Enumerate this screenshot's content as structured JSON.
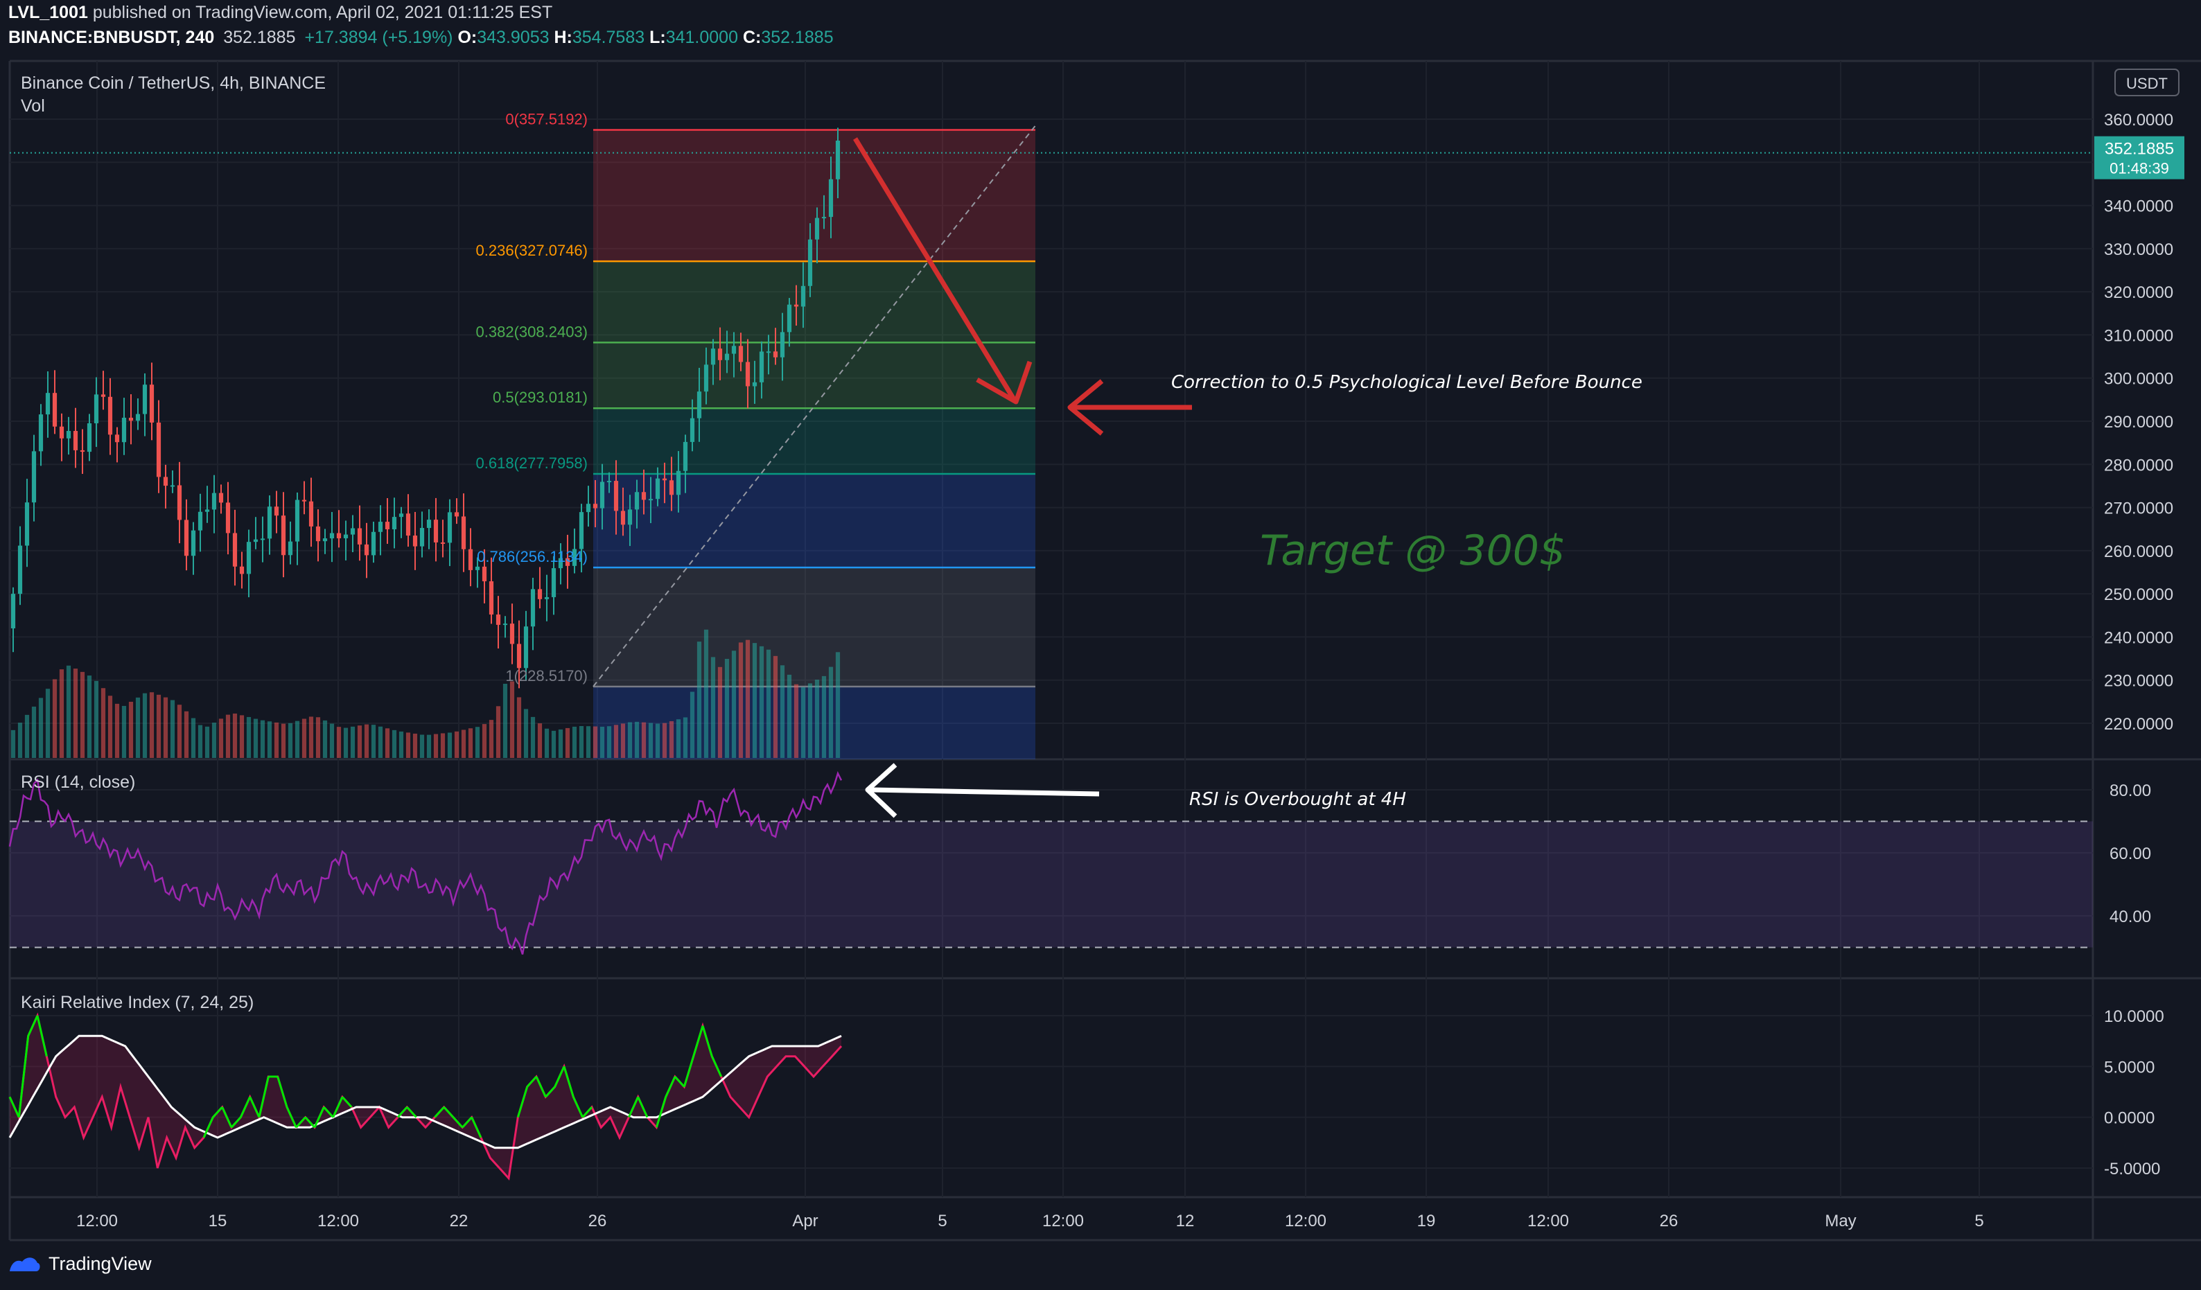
{
  "header": {
    "author": "LVL_1001",
    "published_text": " published on TradingView.com, April 02, 2021 01:11:25 EST",
    "symbol": "BINANCE:BNBUSDT, 240",
    "last": "352.1885",
    "change": "+17.3894 (+5.19%)",
    "o_label": "O:",
    "o": "343.9053",
    "h_label": "H:",
    "h": "354.7583",
    "l_label": "L:",
    "l": "341.0000",
    "c_label": "C:",
    "c": "352.1885"
  },
  "main_pane": {
    "title": "Binance Coin / TetherUS, 4h, BINANCE",
    "vol_label": "Vol",
    "currency_badge": "USDT",
    "price_badge": "352.1885",
    "countdown_badge": "01:48:39"
  },
  "rsi_pane": {
    "title": "RSI (14, close)"
  },
  "kairi_pane": {
    "title": "Kairi Relative Index (7, 24, 25)"
  },
  "annotations": {
    "correction": "Correction to 0.5 Psychological Level Before Bounce",
    "target": "Target @ 300$",
    "rsi_note": "RSI is Overbought at 4H"
  },
  "footer": {
    "brand": "TradingView"
  },
  "colors": {
    "up": "#26a69a",
    "down": "#ef5350",
    "rsi": "#9c27b0",
    "kairi_pos": "#00e600",
    "kairi_neg": "#e91e63",
    "arrow_red": "#d32f2f",
    "target": "#2e7d32"
  },
  "chart_data": [
    {
      "type": "candlestick",
      "title": "Binance Coin / TetherUS, 4h, BINANCE",
      "x_ticks": [
        "12:00",
        "15",
        "12:00",
        "22",
        "26",
        "Apr",
        "5",
        "12:00",
        "12",
        "12:00",
        "19",
        "12:00",
        "26",
        "May",
        "5"
      ],
      "y_ticks": [
        "360.0000",
        "350.0000",
        "340.0000",
        "330.0000",
        "320.0000",
        "310.0000",
        "300.0000",
        "290.0000",
        "280.0000",
        "270.0000",
        "260.0000",
        "250.0000",
        "240.0000",
        "230.0000",
        "220.0000"
      ],
      "ylim": [
        214,
        362
      ],
      "price_path": [
        [
          0,
          242
        ],
        [
          6,
          258
        ],
        [
          12,
          286
        ],
        [
          18,
          294
        ],
        [
          24,
          288
        ],
        [
          30,
          282
        ],
        [
          36,
          290
        ],
        [
          42,
          296
        ],
        [
          48,
          284
        ],
        [
          54,
          292
        ],
        [
          60,
          296
        ],
        [
          66,
          280
        ],
        [
          72,
          272
        ],
        [
          78,
          262
        ],
        [
          84,
          266
        ],
        [
          90,
          276
        ],
        [
          96,
          262
        ],
        [
          102,
          256
        ],
        [
          108,
          262
        ],
        [
          114,
          270
        ],
        [
          120,
          260
        ],
        [
          126,
          270
        ],
        [
          132,
          268
        ],
        [
          138,
          260
        ],
        [
          144,
          266
        ],
        [
          150,
          262
        ],
        [
          156,
          262
        ],
        [
          162,
          264
        ],
        [
          168,
          270
        ],
        [
          174,
          262
        ],
        [
          180,
          266
        ],
        [
          186,
          262
        ],
        [
          192,
          268
        ],
        [
          198,
          262
        ],
        [
          204,
          254
        ],
        [
          210,
          248
        ],
        [
          216,
          240
        ],
        [
          222,
          236
        ],
        [
          228,
          248
        ],
        [
          234,
          252
        ],
        [
          240,
          256
        ],
        [
          246,
          262
        ],
        [
          252,
          270
        ],
        [
          258,
          276
        ],
        [
          264,
          270
        ],
        [
          270,
          268
        ],
        [
          276,
          274
        ],
        [
          282,
          274
        ],
        [
          288,
          276
        ],
        [
          294,
          282
        ],
        [
          300,
          300
        ],
        [
          306,
          304
        ],
        [
          312,
          308
        ],
        [
          318,
          302
        ],
        [
          324,
          300
        ],
        [
          330,
          306
        ],
        [
          336,
          310
        ],
        [
          342,
          318
        ],
        [
          348,
          330
        ],
        [
          354,
          340
        ],
        [
          358,
          350
        ],
        [
          360,
          352
        ]
      ],
      "volume_path": [
        [
          0,
          30
        ],
        [
          12,
          60
        ],
        [
          24,
          90
        ],
        [
          36,
          70
        ],
        [
          48,
          40
        ],
        [
          60,
          50
        ],
        [
          72,
          40
        ],
        [
          84,
          20
        ],
        [
          96,
          30
        ],
        [
          108,
          25
        ],
        [
          120,
          22
        ],
        [
          132,
          28
        ],
        [
          144,
          20
        ],
        [
          156,
          24
        ],
        [
          168,
          20
        ],
        [
          180,
          18
        ],
        [
          192,
          22
        ],
        [
          204,
          30
        ],
        [
          210,
          40
        ],
        [
          216,
          90
        ],
        [
          222,
          60
        ],
        [
          234,
          30
        ],
        [
          246,
          32
        ],
        [
          258,
          28
        ],
        [
          270,
          30
        ],
        [
          282,
          26
        ],
        [
          294,
          30
        ],
        [
          300,
          100
        ],
        [
          306,
          60
        ],
        [
          318,
          80
        ],
        [
          330,
          70
        ],
        [
          342,
          45
        ],
        [
          354,
          55
        ],
        [
          360,
          75
        ]
      ],
      "fibonacci": [
        {
          "level": "0",
          "value": 357.5192,
          "label": "0(357.5192)"
        },
        {
          "level": "0.236",
          "value": 327.0746,
          "label": "0.236(327.0746)"
        },
        {
          "level": "0.382",
          "value": 308.2403,
          "label": "0.382(308.2403)"
        },
        {
          "level": "0.5",
          "value": 293.0181,
          "label": "0.5(293.0181)"
        },
        {
          "level": "0.618",
          "value": 277.7958,
          "label": "0.618(277.7958)"
        },
        {
          "level": "0.786",
          "value": 256.1134,
          "label": "0.786(256.1134)"
        },
        {
          "level": "1",
          "value": 228.517,
          "label": "1(228.5170)"
        }
      ]
    },
    {
      "type": "line",
      "title": "RSI (14, close)",
      "y_ticks": [
        "80.00",
        "60.00",
        "40.00"
      ],
      "ylim": [
        25,
        86
      ],
      "levels": [
        70,
        30
      ],
      "values": [
        [
          0,
          62
        ],
        [
          6,
          76
        ],
        [
          12,
          82
        ],
        [
          18,
          70
        ],
        [
          24,
          72
        ],
        [
          30,
          66
        ],
        [
          36,
          64
        ],
        [
          42,
          62
        ],
        [
          48,
          58
        ],
        [
          54,
          60
        ],
        [
          60,
          56
        ],
        [
          66,
          50
        ],
        [
          72,
          46
        ],
        [
          78,
          50
        ],
        [
          84,
          44
        ],
        [
          90,
          48
        ],
        [
          96,
          40
        ],
        [
          102,
          44
        ],
        [
          108,
          42
        ],
        [
          114,
          52
        ],
        [
          120,
          48
        ],
        [
          126,
          50
        ],
        [
          132,
          46
        ],
        [
          138,
          54
        ],
        [
          144,
          60
        ],
        [
          150,
          50
        ],
        [
          156,
          48
        ],
        [
          162,
          52
        ],
        [
          168,
          50
        ],
        [
          174,
          54
        ],
        [
          180,
          48
        ],
        [
          186,
          50
        ],
        [
          192,
          46
        ],
        [
          198,
          52
        ],
        [
          204,
          48
        ],
        [
          210,
          40
        ],
        [
          216,
          32
        ],
        [
          222,
          30
        ],
        [
          228,
          42
        ],
        [
          234,
          50
        ],
        [
          240,
          52
        ],
        [
          246,
          58
        ],
        [
          252,
          66
        ],
        [
          258,
          70
        ],
        [
          264,
          64
        ],
        [
          270,
          62
        ],
        [
          276,
          66
        ],
        [
          282,
          60
        ],
        [
          288,
          64
        ],
        [
          294,
          70
        ],
        [
          300,
          76
        ],
        [
          306,
          70
        ],
        [
          312,
          80
        ],
        [
          318,
          72
        ],
        [
          324,
          70
        ],
        [
          330,
          66
        ],
        [
          336,
          70
        ],
        [
          342,
          74
        ],
        [
          348,
          76
        ],
        [
          354,
          80
        ],
        [
          360,
          84
        ]
      ]
    },
    {
      "type": "line",
      "title": "Kairi Relative Index (7, 24, 25)",
      "y_ticks": [
        "10.0000",
        "5.0000",
        "0.0000",
        "-5.0000"
      ],
      "ylim": [
        -8,
        12
      ],
      "series": [
        {
          "values": [
            [
              0,
              2
            ],
            [
              4,
              0
            ],
            [
              8,
              8
            ],
            [
              12,
              10
            ],
            [
              16,
              6
            ],
            [
              20,
              2
            ],
            [
              24,
              0
            ],
            [
              28,
              1
            ],
            [
              32,
              -2
            ],
            [
              36,
              0
            ],
            [
              40,
              2
            ],
            [
              44,
              -1
            ],
            [
              48,
              3
            ],
            [
              52,
              0
            ],
            [
              56,
              -3
            ],
            [
              60,
              0
            ],
            [
              64,
              -5
            ],
            [
              68,
              -2
            ],
            [
              72,
              -4
            ],
            [
              76,
              -1
            ],
            [
              80,
              -3
            ],
            [
              84,
              -2
            ],
            [
              88,
              0
            ],
            [
              92,
              1
            ],
            [
              96,
              -1
            ],
            [
              100,
              0
            ],
            [
              104,
              2
            ],
            [
              108,
              0
            ],
            [
              112,
              4
            ],
            [
              116,
              4
            ],
            [
              120,
              1
            ],
            [
              124,
              -1
            ],
            [
              128,
              0
            ],
            [
              132,
              -1
            ],
            [
              136,
              1
            ],
            [
              140,
              0
            ],
            [
              144,
              2
            ],
            [
              148,
              1
            ],
            [
              152,
              -1
            ],
            [
              156,
              0
            ],
            [
              160,
              1
            ],
            [
              164,
              -1
            ],
            [
              168,
              0
            ],
            [
              172,
              1
            ],
            [
              176,
              0
            ],
            [
              180,
              -1
            ],
            [
              184,
              0
            ],
            [
              188,
              1
            ],
            [
              192,
              0
            ],
            [
              196,
              -1
            ],
            [
              200,
              0
            ],
            [
              204,
              -2
            ],
            [
              208,
              -4
            ],
            [
              212,
              -5
            ],
            [
              216,
              -6
            ],
            [
              220,
              0
            ],
            [
              224,
              3
            ],
            [
              228,
              4
            ],
            [
              232,
              2
            ],
            [
              236,
              3
            ],
            [
              240,
              5
            ],
            [
              244,
              2
            ],
            [
              248,
              0
            ],
            [
              252,
              1
            ],
            [
              256,
              -1
            ],
            [
              260,
              0
            ],
            [
              264,
              -2
            ],
            [
              268,
              0
            ],
            [
              272,
              2
            ],
            [
              276,
              0
            ],
            [
              280,
              -1
            ],
            [
              284,
              2
            ],
            [
              288,
              4
            ],
            [
              292,
              3
            ],
            [
              296,
              6
            ],
            [
              300,
              9
            ],
            [
              304,
              6
            ],
            [
              308,
              4
            ],
            [
              312,
              2
            ],
            [
              316,
              1
            ],
            [
              320,
              0
            ],
            [
              324,
              2
            ],
            [
              328,
              4
            ],
            [
              332,
              5
            ],
            [
              336,
              6
            ],
            [
              340,
              6
            ],
            [
              344,
              5
            ],
            [
              348,
              4
            ],
            [
              352,
              5
            ],
            [
              356,
              6
            ],
            [
              360,
              7
            ]
          ]
        },
        {
          "values": [
            [
              0,
              -2
            ],
            [
              10,
              2
            ],
            [
              20,
              6
            ],
            [
              30,
              8
            ],
            [
              40,
              8
            ],
            [
              50,
              7
            ],
            [
              60,
              4
            ],
            [
              70,
              1
            ],
            [
              80,
              -1
            ],
            [
              90,
              -2
            ],
            [
              100,
              -1
            ],
            [
              110,
              0
            ],
            [
              120,
              -1
            ],
            [
              130,
              -1
            ],
            [
              140,
              0
            ],
            [
              150,
              1
            ],
            [
              160,
              1
            ],
            [
              170,
              0
            ],
            [
              180,
              0
            ],
            [
              190,
              -1
            ],
            [
              200,
              -2
            ],
            [
              210,
              -3
            ],
            [
              220,
              -3
            ],
            [
              230,
              -2
            ],
            [
              240,
              -1
            ],
            [
              250,
              0
            ],
            [
              260,
              1
            ],
            [
              270,
              0
            ],
            [
              280,
              0
            ],
            [
              290,
              1
            ],
            [
              300,
              2
            ],
            [
              310,
              4
            ],
            [
              320,
              6
            ],
            [
              330,
              7
            ],
            [
              340,
              7
            ],
            [
              350,
              7
            ],
            [
              360,
              8
            ]
          ]
        }
      ]
    }
  ]
}
